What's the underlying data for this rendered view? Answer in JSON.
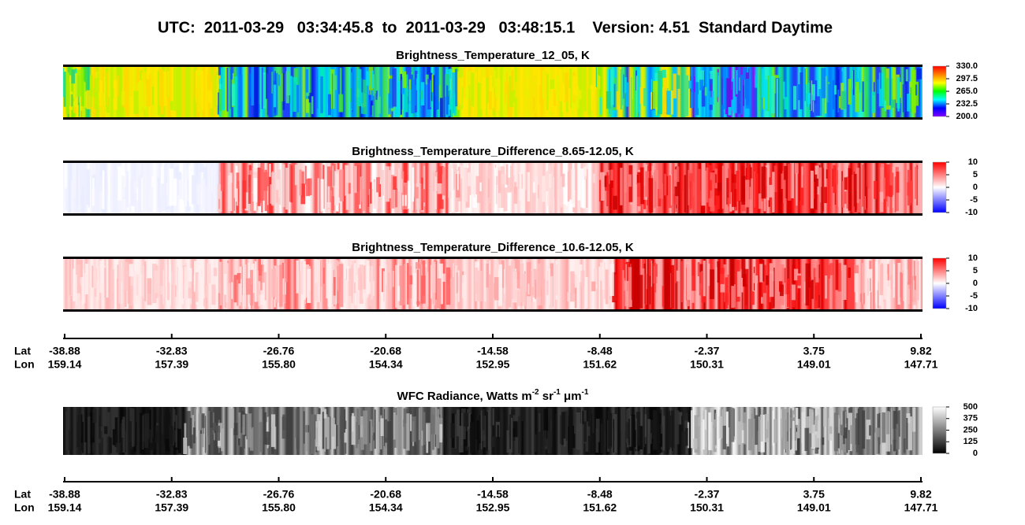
{
  "title": "UTC:  2011-03-29   03:34:45.8  to  2011-03-29   03:48:15.1    Version: 4.51  Standard Daytime",
  "panels": [
    {
      "title": "Brightness_Temperature_12_05, K",
      "colorbar_ticks": [
        "330.0",
        "297.5",
        "265.0",
        "232.5",
        "200.0"
      ]
    },
    {
      "title": "Brightness_Temperature_Difference_8.65-12.05, K",
      "colorbar_ticks": [
        "10",
        "5",
        "0",
        "-5",
        "-10"
      ]
    },
    {
      "title": "Brightness_Temperature_Difference_10.6-12.05, K",
      "colorbar_ticks": [
        "10",
        "5",
        "0",
        "-5",
        "-10"
      ]
    },
    {
      "title_parts": [
        "WFC Radiance, Watts m",
        "-2",
        " sr",
        "-1",
        " μm",
        "-1"
      ],
      "colorbar_ticks": [
        "500",
        "375",
        "250",
        "125",
        "0"
      ]
    }
  ],
  "axes": [
    {
      "lat_label": "Lat",
      "lon_label": "Lon",
      "lat": [
        "-38.88",
        "-32.83",
        "-26.76",
        "-20.68",
        "-14.58",
        "-8.48",
        "-2.37",
        "3.75",
        "9.82"
      ],
      "lon": [
        "159.14",
        "157.39",
        "155.80",
        "154.34",
        "152.95",
        "151.62",
        "150.31",
        "149.01",
        "147.71"
      ]
    },
    {
      "lat_label": "Lat",
      "lon_label": "Lon",
      "lat": [
        "-38.88",
        "-32.83",
        "-26.76",
        "-20.68",
        "-14.58",
        "-8.48",
        "-2.37",
        "3.75",
        "9.82"
      ],
      "lon": [
        "159.14",
        "157.39",
        "155.80",
        "154.34",
        "152.95",
        "151.62",
        "150.31",
        "149.01",
        "147.71"
      ]
    }
  ]
}
